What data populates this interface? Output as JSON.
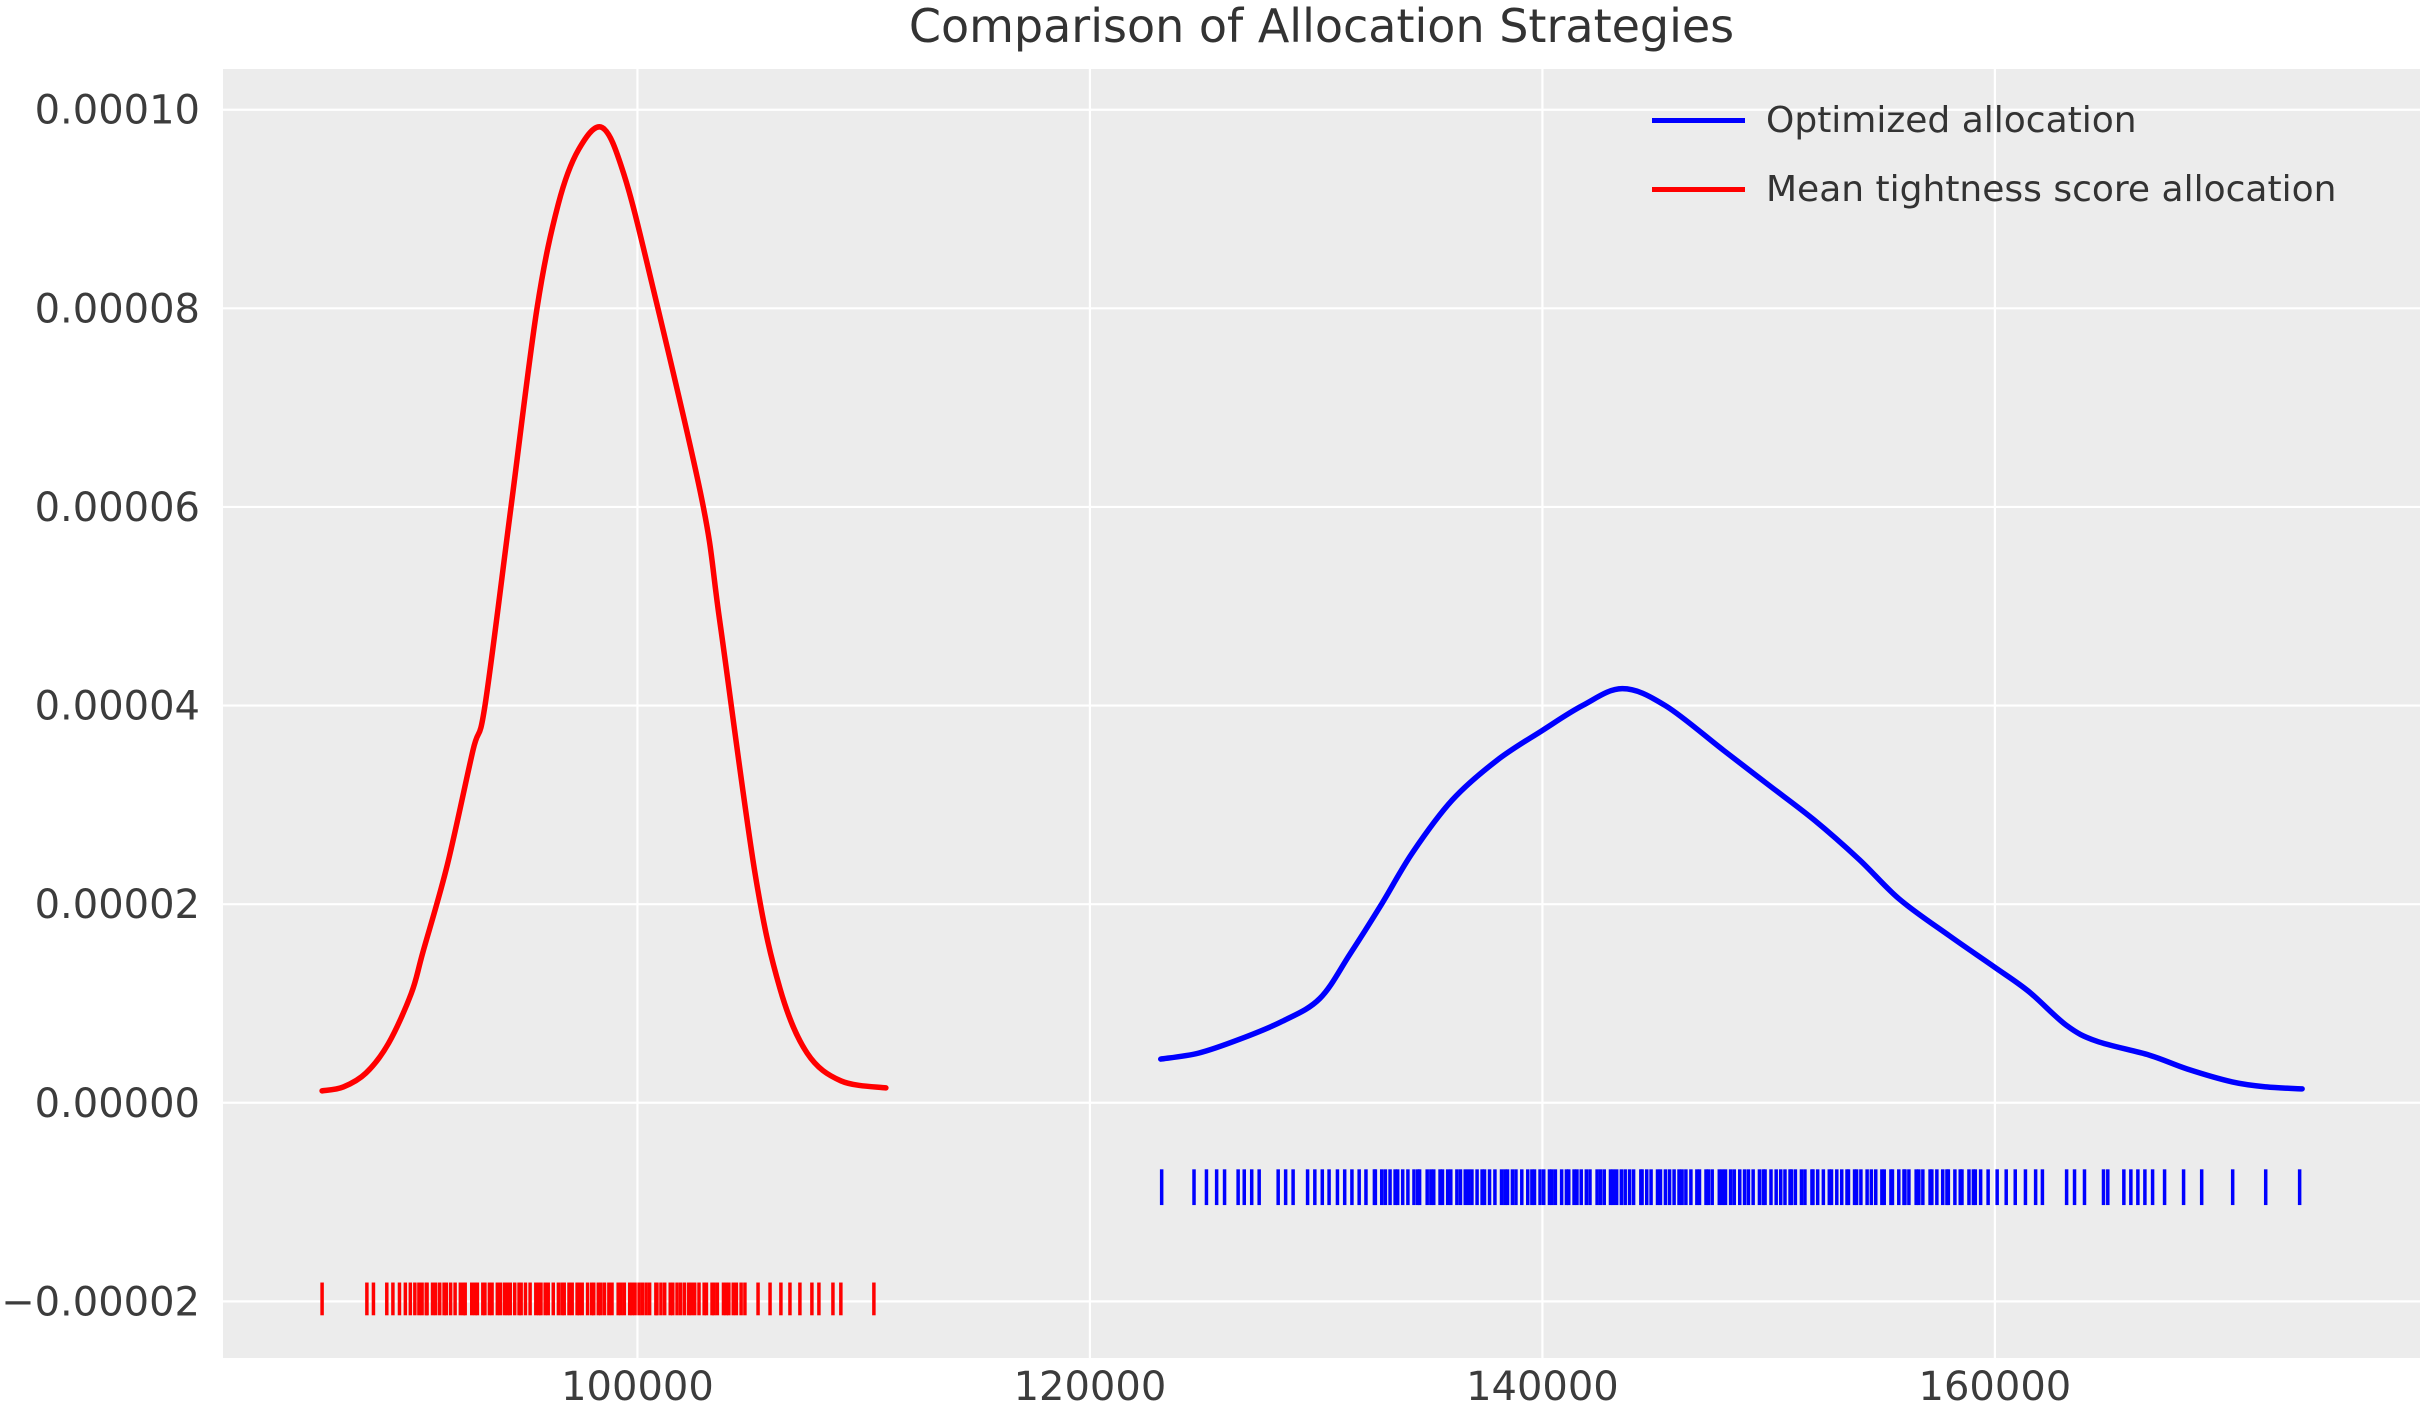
{
  "page": {
    "background": "#ffffff"
  },
  "chart_data": {
    "type": "line",
    "title": "Comparison of Allocation Strategies",
    "xlabel": "",
    "ylabel": "",
    "xlim": [
      81680,
      178790
    ],
    "ylim": [
      -2.57e-05,
      0.0001041
    ],
    "grid": true,
    "legend_position": "upper right",
    "xticks": {
      "values": [
        100000,
        120000,
        140000,
        160000
      ],
      "labels": [
        "100000",
        "120000",
        "140000",
        "160000"
      ]
    },
    "yticks": {
      "values": [
        0.0001,
        8e-05,
        6e-05,
        4e-05,
        2e-05,
        0,
        -2e-05
      ],
      "labels": [
        "0.00010",
        "0.00008",
        "0.00006",
        "0.00004",
        "0.00002",
        "0.00000",
        "−0.00002"
      ]
    },
    "colors": {
      "axes_background": "#ececec",
      "gridline": "#ffffff",
      "tick_text": "#3c3c3c",
      "title_text": "#333333",
      "optimized": "#0000ff",
      "mean_tightness": "#ff0000"
    },
    "series": [
      {
        "name": "Optimized allocation",
        "color": "#0000ff",
        "kind": "kde",
        "points": [
          [
            123130,
            4.4e-06
          ],
          [
            124800,
            5e-06
          ],
          [
            126620,
            6.4e-06
          ],
          [
            128500,
            8.2e-06
          ],
          [
            130160,
            1.05e-05
          ],
          [
            131500,
            1.5e-05
          ],
          [
            132890,
            2e-05
          ],
          [
            134260,
            2.52e-05
          ],
          [
            136020,
            3.05e-05
          ],
          [
            138000,
            3.45e-05
          ],
          [
            140000,
            3.75e-05
          ],
          [
            141770,
            4e-05
          ],
          [
            143530,
            4.17e-05
          ],
          [
            145430,
            4e-05
          ],
          [
            148000,
            3.55e-05
          ],
          [
            150000,
            3.2e-05
          ],
          [
            152000,
            2.85e-05
          ],
          [
            154000,
            2.45e-05
          ],
          [
            155780,
            2.05e-05
          ],
          [
            158000,
            1.68e-05
          ],
          [
            159960,
            1.37e-05
          ],
          [
            161500,
            1.12e-05
          ],
          [
            163160,
            7.8e-06
          ],
          [
            164500,
            6.2e-06
          ],
          [
            166820,
            4.8e-06
          ],
          [
            168500,
            3.4e-06
          ],
          [
            170490,
            2.1e-06
          ],
          [
            172000,
            1.6e-06
          ],
          [
            173580,
            1.4e-06
          ]
        ],
        "rug": {
          "top": -6.7e-06,
          "bottom": -1.03e-05,
          "bands": [
            {
              "from": 132500,
              "to": 159380,
              "count": 140
            }
          ],
          "ticks": [
            123170,
            124600,
            125150,
            125600,
            125950,
            126550,
            126820,
            127150,
            127480,
            128320,
            128650,
            128980,
            129620,
            129940,
            130270,
            130570,
            130940,
            131260,
            131580,
            131900,
            132200,
            159700,
            160100,
            160500,
            160900,
            161350,
            161800,
            162100,
            163170,
            163520,
            163960,
            164800,
            164990,
            165700,
            166010,
            166320,
            166630,
            166970,
            167500,
            168340,
            169140,
            170510,
            171970,
            173470
          ]
        }
      },
      {
        "name": "Mean tightness score allocation",
        "color": "#ff0000",
        "kind": "kde",
        "points": [
          [
            86060,
            1.2e-06
          ],
          [
            87000,
            1.6e-06
          ],
          [
            88000,
            3e-06
          ],
          [
            89000,
            6e-06
          ],
          [
            90000,
            1.1e-05
          ],
          [
            90520,
            1.52e-05
          ],
          [
            91600,
            2.4e-05
          ],
          [
            92730,
            3.55e-05
          ],
          [
            93260,
            4e-05
          ],
          [
            94410,
            6e-05
          ],
          [
            95560,
            8e-05
          ],
          [
            96500,
            9.05e-05
          ],
          [
            97400,
            9.6e-05
          ],
          [
            98440,
            9.82e-05
          ],
          [
            99400,
            9.35e-05
          ],
          [
            100640,
            8.25e-05
          ],
          [
            102850,
            6.07e-05
          ],
          [
            103650,
            4.83e-05
          ],
          [
            105190,
            2.32e-05
          ],
          [
            106300,
            1.15e-05
          ],
          [
            107500,
            5e-06
          ],
          [
            109000,
            2.2e-06
          ],
          [
            110980,
            1.5e-06
          ]
        ],
        "rug": {
          "top": -1.81e-05,
          "bottom": -2.14e-05,
          "bands": [
            {
              "from": 90600,
              "to": 104600,
              "count": 85
            }
          ],
          "ticks": [
            86060,
            88040,
            88330,
            88920,
            89190,
            89480,
            89740,
            89960,
            90160,
            90340,
            90480,
            104750,
            105330,
            105860,
            106340,
            106740,
            107180,
            107710,
            108020,
            108640,
            108990,
            110450
          ]
        }
      }
    ]
  }
}
